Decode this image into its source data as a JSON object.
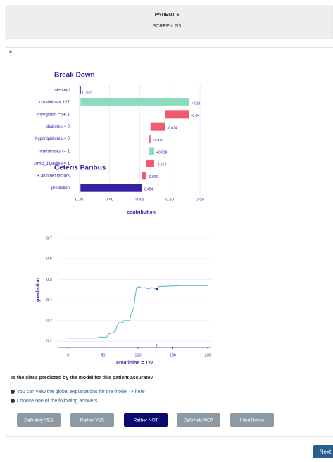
{
  "header": {
    "title": "PATIENT 6",
    "subtitle": "SCREEN 2/3"
  },
  "required_marker": "*",
  "break_down": {
    "type": "waterfall",
    "title": "Break Down",
    "categories": [
      "intercept",
      "creatinine = 127",
      "myoglobin = 96.1",
      "diabetes = 0",
      "hyperlipidemia = 0",
      "hypertension = 1",
      "covid_digestive = 1",
      "+ all other factors",
      "prediction"
    ],
    "values": [
      0.352,
      0.18,
      -0.04,
      -0.024,
      -0.002,
      0.008,
      -0.014,
      -0.006,
      0.454
    ],
    "value_labels": [
      "0.352",
      "+0.18",
      "-0.04",
      "-0.024",
      "-0.002",
      "+0.008",
      "-0.014",
      "-0.006",
      "0.454"
    ],
    "xlim": [
      0.34,
      0.565
    ],
    "xticks": [
      0.35,
      {
        "value": 0.4,
        "label": "0.40"
      },
      0.45,
      {
        "value": 0.5,
        "label": "0.50"
      },
      0.55
    ],
    "xlabel": "contribution",
    "colors": {
      "intercept": "#371ea3",
      "positive": "#8bdcbe",
      "negative": "#f05a71",
      "prediction": "#371ea3"
    }
  },
  "ceteris_paribus": {
    "type": "line",
    "title": "Ceteris Paribus",
    "x": [
      0,
      40,
      45,
      55,
      58,
      63,
      68,
      70,
      73,
      78,
      80,
      88,
      90,
      94,
      96,
      98,
      102,
      105,
      110,
      115,
      120,
      127,
      130,
      150,
      165,
      200
    ],
    "values": [
      0.215,
      0.215,
      0.22,
      0.22,
      0.235,
      0.24,
      0.25,
      0.275,
      0.29,
      0.29,
      0.3,
      0.3,
      0.33,
      0.36,
      0.42,
      0.46,
      0.465,
      0.458,
      0.46,
      0.455,
      0.46,
      0.454,
      0.465,
      0.468,
      0.47,
      0.47
    ],
    "color": "#46bac2",
    "xlim": [
      -14,
      205
    ],
    "ylim": [
      0.17,
      0.72
    ],
    "xticks": [
      0,
      50,
      100,
      150,
      200
    ],
    "yticks": [
      0.2,
      0.3,
      0.4,
      0.5,
      0.6,
      0.7
    ],
    "xlabel": "creatinine = 127",
    "ylabel": "prediction",
    "observation": {
      "x": 127,
      "y": 0.454
    }
  },
  "question": "Is the class predicted by the model for this patient accurate?",
  "info": [
    "You can view the global explanations for the model -> here",
    "Choose one of the following answers"
  ],
  "answers": [
    "Definitely YES",
    "Rather YES",
    "Rather NOT",
    "Definitely NOT",
    "I don't know"
  ],
  "selected": 2,
  "next": "Next"
}
